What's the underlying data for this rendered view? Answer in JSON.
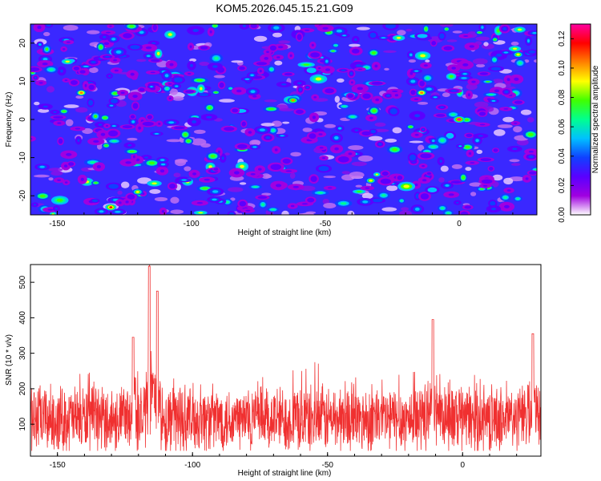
{
  "chart_data": [
    {
      "type": "heatmap",
      "title": "KOM5.2026.045.15.21.G09",
      "xlabel": "Height of straight line (km)",
      "ylabel": "Frequency (Hz)",
      "xlim": [
        -160,
        29
      ],
      "ylim": [
        -25,
        25
      ],
      "xticks": [
        -150,
        -100,
        -50,
        0
      ],
      "yticks": [
        -20,
        -10,
        0,
        10,
        20
      ],
      "colorbar": {
        "label": "Normalized spectral amplitude",
        "range": [
          0,
          0.13
        ],
        "ticks": [
          "0.00",
          "0.02",
          "0.04",
          "0.06",
          "0.08",
          "0.10",
          "0.12"
        ],
        "colors": [
          "#ffffff",
          "#a000e0",
          "#5a00ff",
          "#1040ff",
          "#00c0ff",
          "#00ff90",
          "#40ff00",
          "#ffff00",
          "#ff8000",
          "#ff0000",
          "#ff00a0"
        ]
      },
      "hotspots": [
        {
          "x": 0,
          "y": 0,
          "v": 0.13
        },
        {
          "x": -130,
          "y": -23,
          "v": 0.12
        },
        {
          "x": -141,
          "y": 7,
          "v": 0.11
        },
        {
          "x": -14,
          "y": 7,
          "v": 0.11
        },
        {
          "x": -62,
          "y": 5,
          "v": 0.1
        },
        {
          "x": -33,
          "y": -16,
          "v": 0.09
        },
        {
          "x": -120,
          "y": -19,
          "v": 0.09
        },
        {
          "x": 22,
          "y": 17,
          "v": 0.09
        }
      ]
    },
    {
      "type": "line",
      "xlabel": "Height of straight line (km)",
      "ylabel": "SNR (10 * v/v)",
      "xlim": [
        -160,
        29
      ],
      "ylim": [
        10,
        550
      ],
      "xticks": [
        -150,
        -100,
        -50,
        0
      ],
      "yticks": [
        100,
        200,
        300,
        400,
        500
      ],
      "color": "#f03030",
      "series": [
        {
          "name": "SNR",
          "baseline": 115,
          "noise_amplitude": 100,
          "peak": {
            "x": -116,
            "value": 545
          }
        }
      ],
      "notable_peaks": [
        {
          "x": -116,
          "value": 545
        },
        {
          "x": -113,
          "value": 475
        },
        {
          "x": -122,
          "value": 345
        },
        {
          "x": -11,
          "value": 395
        },
        {
          "x": 26,
          "value": 355
        }
      ]
    }
  ]
}
